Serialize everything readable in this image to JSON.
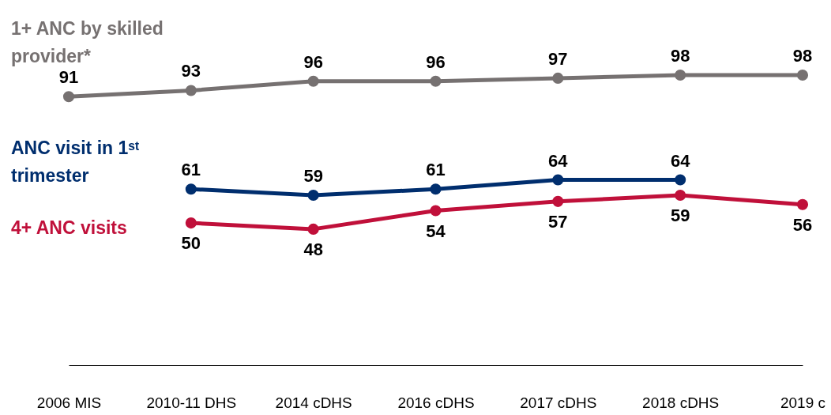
{
  "chart_data": {
    "type": "line",
    "categories": [
      "2006 MIS",
      "2010-11 DHS",
      "2014 cDHS",
      "2016 cDHS",
      "2017 cDHS",
      "2018 cDHS",
      "2019 c"
    ],
    "series": [
      {
        "name": "1+ ANC by skilled provider*",
        "color": "#767171",
        "values": [
          91,
          93,
          96,
          96,
          97,
          98,
          98
        ]
      },
      {
        "name": "ANC visit in 1ˢᵗ trimester",
        "color": "#002e6e",
        "values": [
          null,
          61,
          59,
          61,
          64,
          64,
          null
        ]
      },
      {
        "name": "4+ ANC visits",
        "color": "#c0103a",
        "values": [
          null,
          50,
          48,
          54,
          57,
          59,
          56
        ]
      }
    ],
    "data_labels": true,
    "marker": "circle",
    "grid": false,
    "legend": false
  }
}
